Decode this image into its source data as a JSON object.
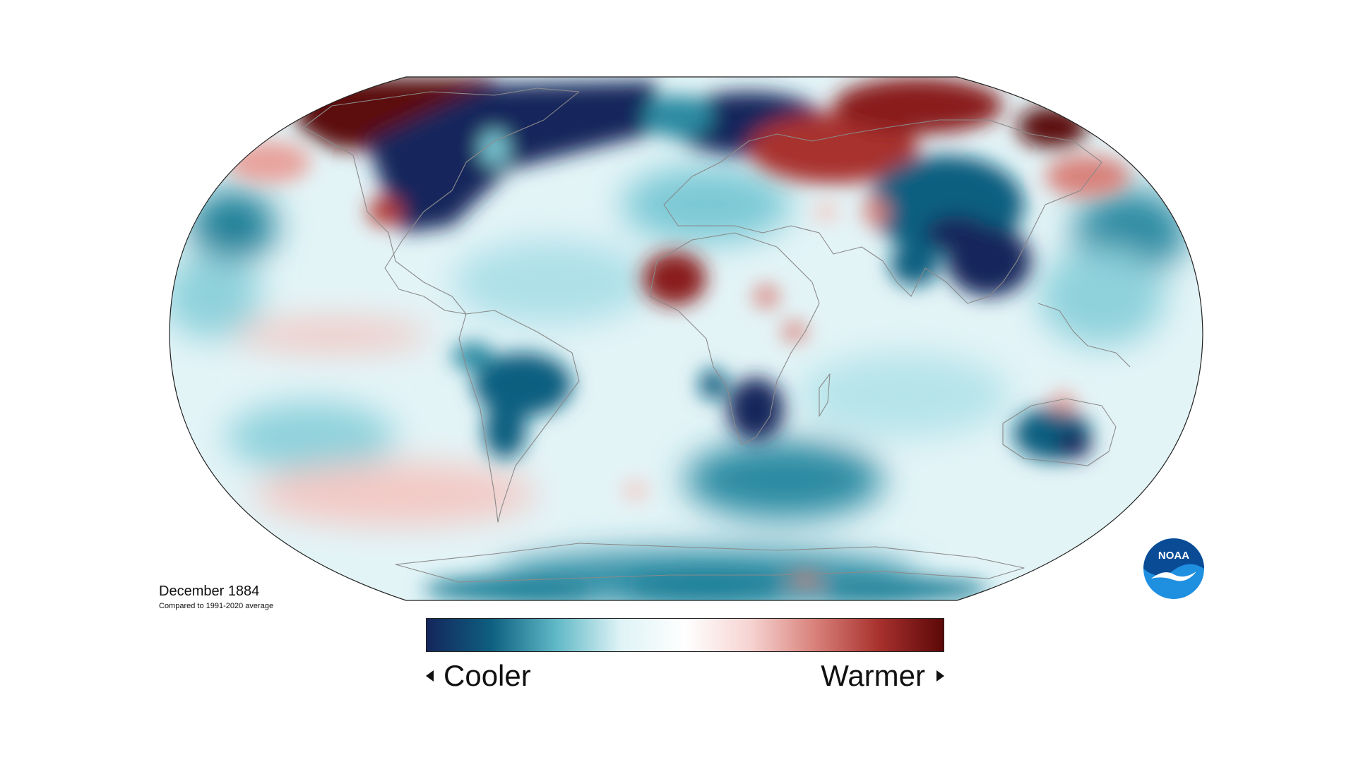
{
  "map": {
    "title": "December 1884",
    "subtitle": "Compared to 1991-2020 average",
    "projection": "Robinson",
    "variable": "temperature anomaly",
    "scale": {
      "low_label": "Cooler",
      "high_label": "Warmer",
      "colors": [
        "#14265c",
        "#0e5f80",
        "#5fb8c6",
        "#dff3f6",
        "#ffffff",
        "#f6d4d2",
        "#d9827b",
        "#a8312d",
        "#5c0808"
      ]
    },
    "land_outline_color": "#8a8a8a",
    "ocean_base_color": "#dff3f6"
  },
  "logo": {
    "text": "NOAA",
    "icon": "noaa-logo-icon",
    "color_dark": "#0a4b96",
    "color_light": "#1f8fe0"
  }
}
